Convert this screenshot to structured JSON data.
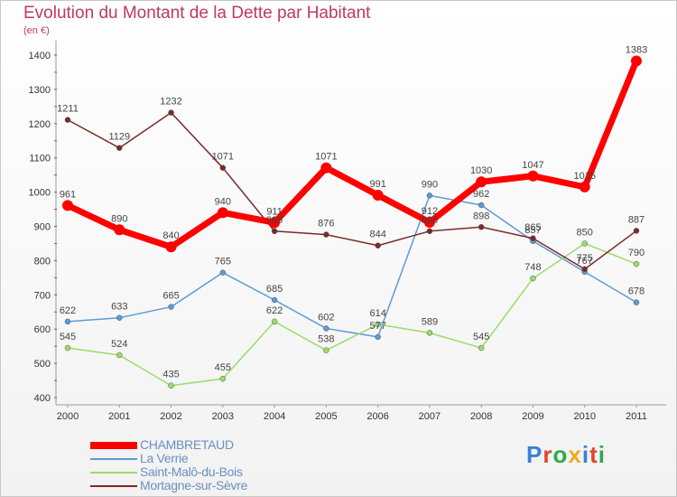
{
  "header": {
    "title": "Evolution du Montant de la Dette par Habitant",
    "subtitle": "(en €)"
  },
  "brand": {
    "text": "Proxiti",
    "colors": [
      "#3b7fd6",
      "#e0462a",
      "#2ea84a",
      "#f2a91c",
      "#3b7fd6",
      "#e0462a",
      "#2ea84a"
    ]
  },
  "chart_data": {
    "type": "line",
    "title": "Evolution du Montant de la Dette par Habitant",
    "subtitle": "(en €)",
    "x": [
      "2000",
      "2001",
      "2002",
      "2003",
      "2004",
      "2005",
      "2006",
      "2007",
      "2008",
      "2009",
      "2010",
      "2011"
    ],
    "ylim": [
      400,
      1400
    ],
    "yticks": [
      "400",
      "500",
      "600",
      "700",
      "800",
      "900",
      "1000",
      "1100",
      "1200",
      "1300",
      "1400"
    ],
    "grid": false,
    "legend_position": "bottom-left",
    "series": [
      {
        "name": "CHAMBRETAUD",
        "color": "#ff0000",
        "values": [
          961,
          890,
          840,
          940,
          911,
          1071,
          991,
          912,
          1030,
          1047,
          1015,
          1383
        ],
        "labels": [
          "961",
          "890",
          "840",
          "940",
          "911",
          "1071",
          "991",
          "912",
          "1030",
          "1047",
          "1015",
          "1383"
        ]
      },
      {
        "name": "La Verrie",
        "color": "#5b9bd5",
        "values": [
          622,
          633,
          665,
          765,
          685,
          602,
          577,
          990,
          962,
          857,
          767,
          678
        ],
        "labels": [
          "622",
          "633",
          "665",
          "765",
          "685",
          "602",
          "577",
          "990",
          "962",
          "857",
          "767",
          "678"
        ]
      },
      {
        "name": "Saint-Malô-du-Bois",
        "color": "#99dd66",
        "values": [
          545,
          524,
          435,
          455,
          622,
          538,
          614,
          589,
          545,
          748,
          850,
          790
        ],
        "labels": [
          "545",
          "524",
          "435",
          "455",
          "622",
          "538",
          "614",
          "589",
          "545",
          "748",
          "850",
          "790"
        ]
      },
      {
        "name": "Mortagne-sur-Sèvre",
        "color": "#7a2a2a",
        "values": [
          1211,
          1129,
          1232,
          1071,
          886,
          876,
          844,
          886,
          898,
          865,
          775,
          887
        ],
        "labels": [
          "1211",
          "1129",
          "1232",
          "1071",
          "886",
          "876",
          "844",
          "886",
          "898",
          "865",
          "775",
          "887"
        ]
      }
    ]
  }
}
